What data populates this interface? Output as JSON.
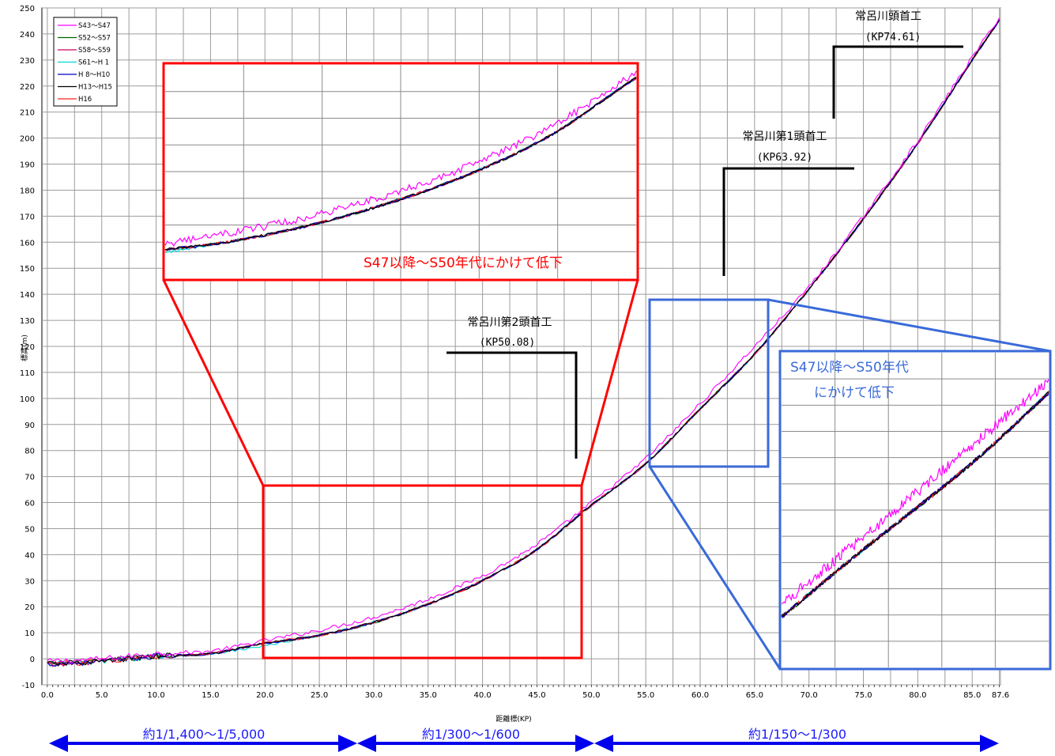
{
  "chart_data": {
    "type": "line",
    "xlabel": "距離標(KP)",
    "ylabel": "標高(m)",
    "xlim": [
      -0.5,
      87.6
    ],
    "ylim": [
      -10,
      250
    ],
    "x_ticks": [
      "0.0",
      "5.0",
      "10.0",
      "15.0",
      "20.0",
      "25.0",
      "30.0",
      "35.0",
      "40.0",
      "45.0",
      "50.0",
      "55.0",
      "60.0",
      "65.0",
      "70.0",
      "75.0",
      "80.0",
      "85.0",
      "87.6"
    ],
    "y_ticks": [
      -10,
      0,
      10,
      20,
      30,
      40,
      50,
      60,
      70,
      80,
      90,
      100,
      110,
      120,
      130,
      140,
      150,
      160,
      170,
      180,
      190,
      200,
      210,
      220,
      230,
      240,
      250
    ],
    "grid": true,
    "legend_position": "top-left",
    "profile_x": [
      0,
      5,
      10,
      15,
      20,
      25,
      30,
      35,
      40,
      45,
      50,
      55,
      60,
      65,
      70,
      75,
      80,
      85,
      87.6
    ],
    "series": [
      {
        "name": "S43～S47",
        "color": "#ff00ff",
        "values": [
          -1,
          0,
          2,
          3,
          7,
          11,
          16,
          23,
          32,
          44,
          60,
          77,
          98,
          120,
          143,
          170,
          199,
          231,
          247
        ]
      },
      {
        "name": "S52～S57",
        "color": "#006400",
        "values": [
          -2,
          -1,
          1,
          2,
          6,
          9,
          14,
          21,
          30,
          42,
          59,
          75,
          96,
          117,
          142,
          169,
          198,
          230,
          246
        ]
      },
      {
        "name": "S58～S59",
        "color": "#cc0066",
        "values": [
          -2,
          -1,
          1,
          2,
          6,
          9,
          14,
          21,
          30,
          42,
          59,
          75,
          96,
          117,
          142,
          169,
          198,
          230,
          246
        ]
      },
      {
        "name": "S61～H 1",
        "color": "#00d8d8",
        "values": [
          -2,
          -1,
          1,
          2,
          5,
          9,
          14,
          21,
          30,
          42,
          59,
          75,
          96,
          117,
          142,
          169,
          198,
          230,
          246
        ]
      },
      {
        "name": "H 8～H10",
        "color": "#0000cc",
        "values": [
          -2,
          -1,
          1,
          2,
          6,
          9,
          14,
          21,
          30,
          42,
          59,
          75,
          96,
          117,
          142,
          169,
          198,
          230,
          246
        ]
      },
      {
        "name": "H13～H15",
        "color": "#000000",
        "values": [
          -2,
          -1,
          1,
          2,
          6,
          9,
          14,
          21,
          30,
          42,
          59,
          75,
          96,
          117,
          142,
          169,
          198,
          230,
          246
        ]
      },
      {
        "name": "H16",
        "color": "#ff2020",
        "values": [
          -2,
          -1,
          1,
          2,
          6,
          9,
          14,
          21,
          30,
          42,
          59,
          75,
          96,
          117,
          142,
          169,
          198,
          230,
          246
        ]
      }
    ],
    "annotations": [
      {
        "name": "常呂川第2頭首工",
        "kp": "(KP50.08)"
      },
      {
        "name": "常呂川第1頭首工",
        "kp": "(KP63.92)"
      },
      {
        "name": "常呂川頭首工",
        "kp": "(KP74.61)"
      }
    ],
    "callouts": {
      "red": "S47以降～S50年代にかけて低下",
      "blue_line1": "S47以降～S50年代",
      "blue_line2": "にかけて低下"
    },
    "scale_ranges": [
      {
        "label": "約1/1,400～1/5,000"
      },
      {
        "label": "約1/300～1/600"
      },
      {
        "label": "約1/150～1/300"
      }
    ]
  },
  "colors": {
    "red": "#ff0000",
    "blue": "#3a6ad8",
    "arrow_blue": "#0000ee",
    "grid": "#b0b0b0"
  }
}
